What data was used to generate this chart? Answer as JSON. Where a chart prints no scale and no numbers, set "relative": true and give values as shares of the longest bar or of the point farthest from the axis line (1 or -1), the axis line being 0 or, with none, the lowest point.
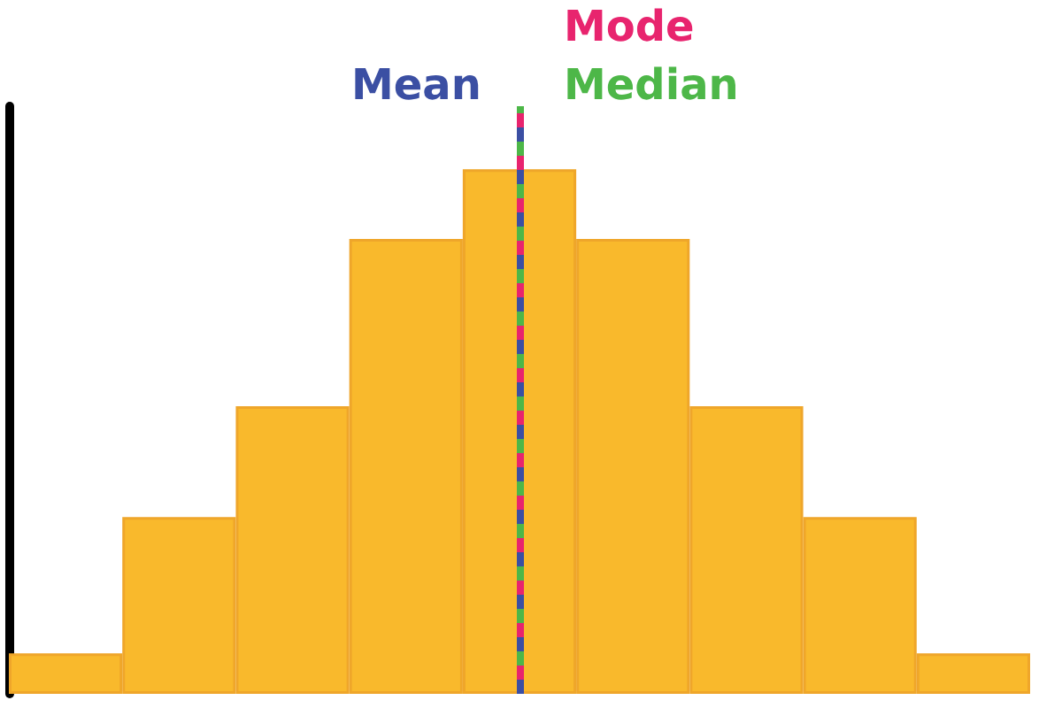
{
  "chart_data": {
    "type": "bar",
    "relative": true,
    "categories": [
      null,
      null,
      null,
      null,
      null,
      null,
      null,
      null,
      null
    ],
    "values": [
      0.077,
      0.337,
      0.548,
      0.867,
      1,
      0.867,
      0.548,
      0.337,
      0.077
    ],
    "color": "#f9b92c",
    "grid": false,
    "ref_lines": [
      {
        "axis": "x",
        "label": "Mean",
        "color": "#3b4fa3",
        "line_style": "dashed"
      },
      {
        "axis": "x",
        "label": "Mode",
        "color": "#e8246e",
        "line_style": "dashed"
      },
      {
        "axis": "x",
        "label": "Median",
        "color": "#4db748",
        "line_style": "dashed"
      }
    ]
  }
}
